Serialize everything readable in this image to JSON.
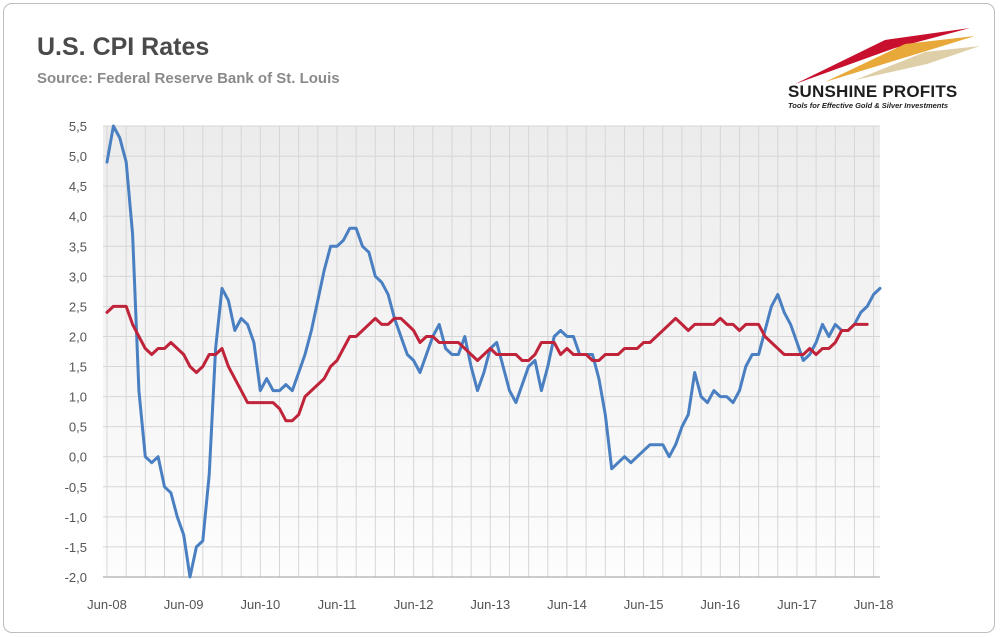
{
  "header": {
    "title": "U.S. CPI Rates",
    "subtitle": "Source: Federal Reserve Bank of St. Louis"
  },
  "logo": {
    "name": "SUNSHINE PROFITS",
    "tagline": "Tools for Effective Gold & Silver Investments",
    "colors": [
      "#c8102e",
      "#e8a93a",
      "#d4af37"
    ]
  },
  "colors": {
    "headline_series": "#4a7fc1",
    "core_series": "#c0243b",
    "plot_background": "#f3f3f3",
    "grid": "#d6d6d6"
  },
  "chart_data": {
    "type": "line",
    "title": "U.S. CPI Rates",
    "subtitle": "Source: Federal Reserve Bank of St. Louis",
    "xlabel": "",
    "ylabel": "",
    "ylim": [
      -2.0,
      5.5
    ],
    "yticks": [
      "5,5",
      "5,0",
      "4,5",
      "4,0",
      "3,5",
      "3,0",
      "2,5",
      "2,0",
      "1,5",
      "1,0",
      "0,5",
      "0,0",
      "-0,5",
      "-1,0",
      "-1,5",
      "-2,0"
    ],
    "xticks": [
      "Jun-08",
      "Jun-09",
      "Jun-10",
      "Jun-11",
      "Jun-12",
      "Jun-13",
      "Jun-14",
      "Jun-15",
      "Jun-16",
      "Jun-17",
      "Jun-18"
    ],
    "grid": true,
    "legend": "none",
    "x_start": "Jun-08",
    "x_end": "Jun-18",
    "x_frequency": "monthly",
    "series": [
      {
        "color": "#4a7fc1",
        "values": [
          4.9,
          5.5,
          5.3,
          4.9,
          3.7,
          1.1,
          0.0,
          -0.1,
          0.0,
          -0.5,
          -0.6,
          -1.0,
          -1.3,
          -2.0,
          -1.5,
          -1.4,
          -0.3,
          1.8,
          2.8,
          2.6,
          2.1,
          2.3,
          2.2,
          1.9,
          1.1,
          1.3,
          1.1,
          1.1,
          1.2,
          1.1,
          1.4,
          1.7,
          2.1,
          2.6,
          3.1,
          3.5,
          3.5,
          3.6,
          3.8,
          3.8,
          3.5,
          3.4,
          3.0,
          2.9,
          2.7,
          2.3,
          2.0,
          1.7,
          1.6,
          1.4,
          1.7,
          2.0,
          2.2,
          1.8,
          1.7,
          1.7,
          2.0,
          1.5,
          1.1,
          1.4,
          1.8,
          1.9,
          1.5,
          1.1,
          0.9,
          1.2,
          1.5,
          1.6,
          1.1,
          1.5,
          2.0,
          2.1,
          2.0,
          2.0,
          1.7,
          1.7,
          1.7,
          1.3,
          0.7,
          -0.2,
          -0.1,
          0.0,
          -0.1,
          0.0,
          0.1,
          0.2,
          0.2,
          0.2,
          0.0,
          0.2,
          0.5,
          0.7,
          1.4,
          1.0,
          0.9,
          1.1,
          1.0,
          1.0,
          0.9,
          1.1,
          1.5,
          1.7,
          1.7,
          2.1,
          2.5,
          2.7,
          2.4,
          2.2,
          1.9,
          1.6,
          1.7,
          1.9,
          2.2,
          2.0,
          2.2,
          2.1,
          2.1,
          2.2,
          2.4,
          2.5,
          2.7,
          2.8
        ]
      },
      {
        "color": "#c0243b",
        "values": [
          2.4,
          2.5,
          2.5,
          2.5,
          2.2,
          2.0,
          1.8,
          1.7,
          1.8,
          1.8,
          1.9,
          1.8,
          1.7,
          1.5,
          1.4,
          1.5,
          1.7,
          1.7,
          1.8,
          1.5,
          1.3,
          1.1,
          0.9,
          0.9,
          0.9,
          0.9,
          0.9,
          0.8,
          0.6,
          0.6,
          0.7,
          1.0,
          1.1,
          1.2,
          1.3,
          1.5,
          1.6,
          1.8,
          2.0,
          2.0,
          2.1,
          2.2,
          2.3,
          2.2,
          2.2,
          2.3,
          2.3,
          2.2,
          2.1,
          1.9,
          2.0,
          2.0,
          1.9,
          1.9,
          1.9,
          1.9,
          1.8,
          1.7,
          1.6,
          1.7,
          1.8,
          1.7,
          1.7,
          1.7,
          1.7,
          1.6,
          1.6,
          1.7,
          1.9,
          1.9,
          1.9,
          1.7,
          1.8,
          1.7,
          1.7,
          1.7,
          1.6,
          1.6,
          1.7,
          1.7,
          1.7,
          1.8,
          1.8,
          1.8,
          1.9,
          1.9,
          2.0,
          2.1,
          2.2,
          2.3,
          2.2,
          2.1,
          2.2,
          2.2,
          2.2,
          2.2,
          2.3,
          2.2,
          2.2,
          2.1,
          2.2,
          2.2,
          2.2,
          2.0,
          1.9,
          1.8,
          1.7,
          1.7,
          1.7,
          1.7,
          1.8,
          1.7,
          1.8,
          1.8,
          1.9,
          2.1,
          2.1,
          2.2,
          2.2,
          2.2
        ]
      }
    ]
  }
}
